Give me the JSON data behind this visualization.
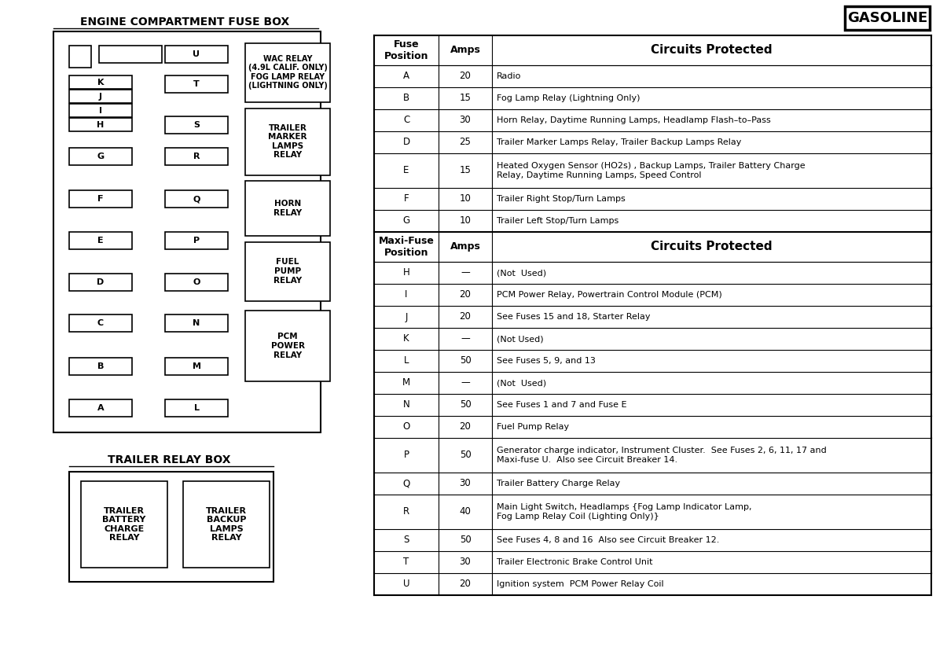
{
  "title_engine": "ENGINE COMPARTMENT FUSE BOX",
  "title_trailer": "TRAILER RELAY BOX",
  "gasoline_label": "GASOLINE",
  "table_rows": [
    [
      "A",
      "20",
      "Radio"
    ],
    [
      "B",
      "15",
      "Fog Lamp Relay (Lightning Only)"
    ],
    [
      "C",
      "30",
      "Horn Relay, Daytime Running Lamps, Headlamp Flash–to–Pass"
    ],
    [
      "D",
      "25",
      "Trailer Marker Lamps Relay, Trailer Backup Lamps Relay"
    ],
    [
      "E",
      "15",
      "Heated Oxygen Sensor (HO2s) , Backup Lamps, Trailer Battery Charge\nRelay, Daytime Running Lamps, Speed Control"
    ],
    [
      "F",
      "10",
      "Trailer Right Stop/Turn Lamps"
    ],
    [
      "G",
      "10",
      "Trailer Left Stop/Turn Lamps"
    ]
  ],
  "maxi_rows": [
    [
      "H",
      "—",
      "(Not  Used)"
    ],
    [
      "I",
      "20",
      "PCM Power Relay, Powertrain Control Module (PCM)"
    ],
    [
      "J",
      "20",
      "See Fuses 15 and 18, Starter Relay"
    ],
    [
      "K",
      "—",
      "(Not Used)"
    ],
    [
      "L",
      "50",
      "See Fuses 5, 9, and 13"
    ],
    [
      "M",
      "—",
      "(Not  Used)"
    ],
    [
      "N",
      "50",
      "See Fuses 1 and 7 and Fuse E"
    ],
    [
      "O",
      "20",
      "Fuel Pump Relay"
    ],
    [
      "P",
      "50",
      "Generator charge indicator, Instrument Cluster.  See Fuses 2, 6, 11, 17 and\nMaxi-fuse U.  Also see Circuit Breaker 14."
    ],
    [
      "Q",
      "30",
      "Trailer Battery Charge Relay"
    ],
    [
      "R",
      "40",
      "Main Light Switch, Headlamps {Fog Lamp Indicator Lamp,\nFog Lamp Relay Coil (Lighting Only)}"
    ],
    [
      "S",
      "50",
      "See Fuses 4, 8 and 16  Also see Circuit Breaker 12."
    ],
    [
      "T",
      "30",
      "Trailer Electronic Brake Control Unit"
    ],
    [
      "U",
      "20",
      "Ignition system  PCM Power Relay Coil"
    ]
  ],
  "background_color": "#ffffff"
}
